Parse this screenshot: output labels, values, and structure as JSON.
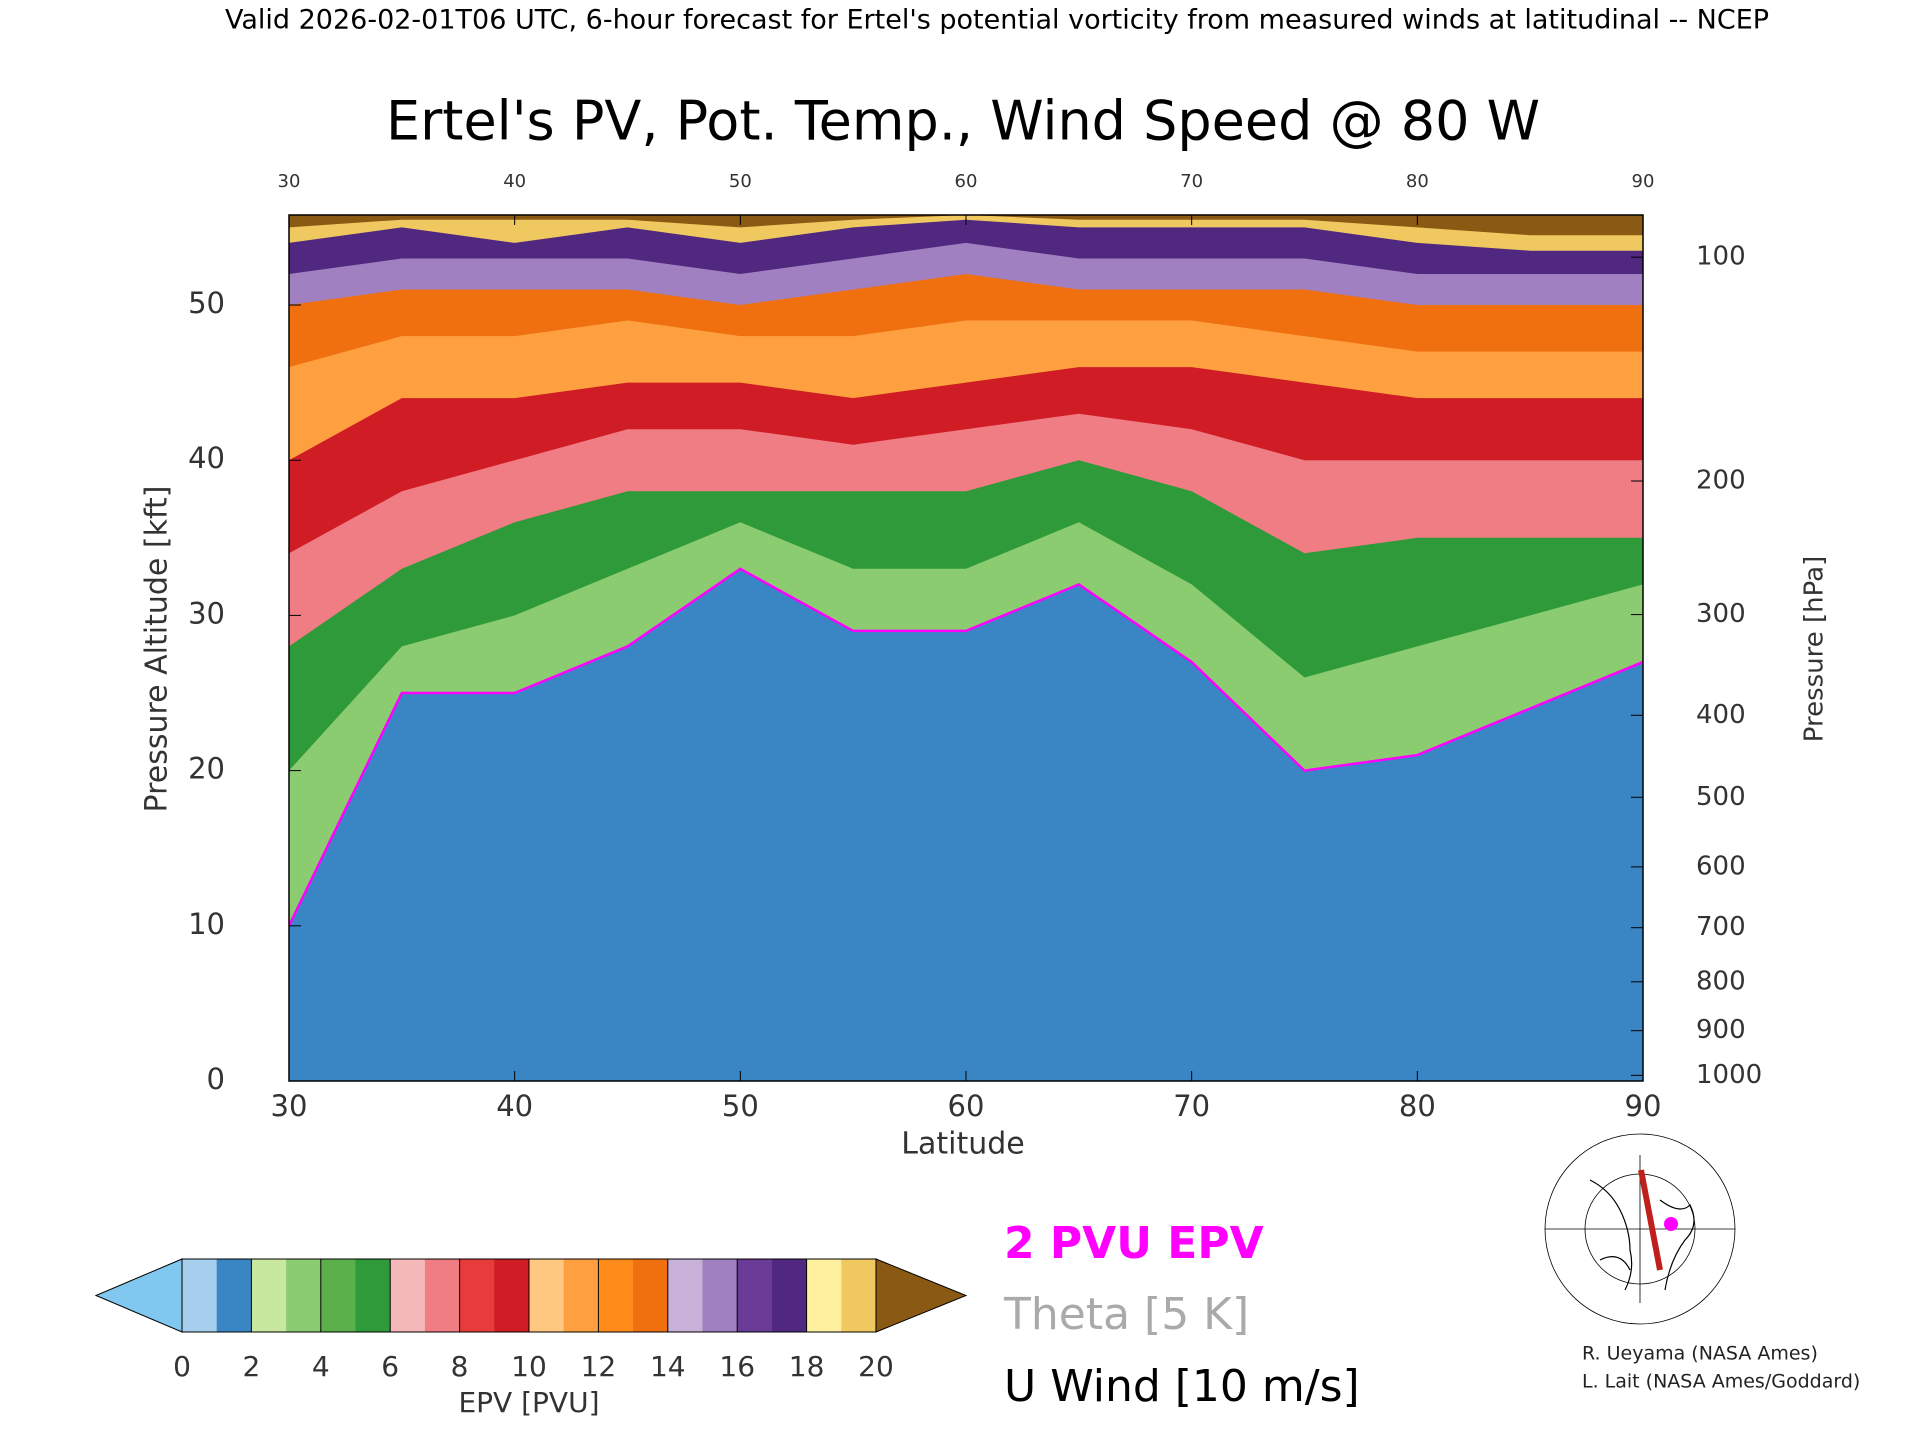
{
  "chart_data": {
    "type": "cross-section",
    "header": "Valid 2026-02-01T06 UTC, 6-hour forecast for Ertel's potential vorticity from measured winds at latitudinal -- NCEP",
    "title": "Ertel's PV, Pot. Temp., Wind Speed @ 80 W",
    "x_label": "Latitude",
    "y_label": "Pressure Altitude [kft]",
    "y2_label": "Pressure [hPa]",
    "xlim": [
      30,
      90
    ],
    "xticks": [
      30,
      40,
      50,
      60,
      70,
      80,
      90
    ],
    "ylim": [
      0,
      55.8
    ],
    "yticks": [
      0,
      10,
      20,
      30,
      40,
      50
    ],
    "y2scale": "pressure-altitude",
    "y2ticks": [
      100,
      200,
      300,
      400,
      500,
      600,
      700,
      800,
      900,
      1000
    ],
    "latitudes": [
      30,
      35,
      40,
      45,
      50,
      55,
      60,
      65,
      70,
      75,
      80,
      85,
      90
    ],
    "contours": [
      {
        "level": 2,
        "values": [
          10,
          25,
          25,
          28,
          33,
          29,
          29,
          32,
          27,
          20,
          21,
          24,
          27
        ]
      },
      {
        "level": 4,
        "values": [
          20,
          28,
          30,
          33,
          36,
          33,
          33,
          36,
          32,
          26,
          28,
          30,
          32
        ]
      },
      {
        "level": 6,
        "values": [
          28,
          33,
          36,
          38,
          38,
          38,
          38,
          40,
          38,
          34,
          35,
          35,
          35
        ]
      },
      {
        "level": 8,
        "values": [
          34,
          38,
          40,
          42,
          42,
          41,
          42,
          43,
          42,
          40,
          40,
          40,
          40
        ]
      },
      {
        "level": 10,
        "values": [
          40,
          44,
          44,
          45,
          45,
          44,
          45,
          46,
          46,
          45,
          44,
          44,
          44
        ]
      },
      {
        "level": 12,
        "values": [
          46,
          48,
          48,
          49,
          48,
          48,
          49,
          49,
          49,
          48,
          47,
          47,
          47
        ]
      },
      {
        "level": 14,
        "values": [
          50,
          51,
          51,
          51,
          50,
          51,
          52,
          51,
          51,
          51,
          50,
          50,
          50
        ]
      },
      {
        "level": 16,
        "values": [
          52,
          53,
          53,
          53,
          52,
          53,
          54,
          53,
          53,
          53,
          52,
          52,
          52
        ]
      },
      {
        "level": 18,
        "values": [
          54,
          55,
          54,
          55,
          54,
          55,
          55.5,
          55,
          55,
          55,
          54,
          53.5,
          53.5
        ]
      },
      {
        "level": 20,
        "values": [
          55,
          55.5,
          55.5,
          55.5,
          55,
          55.5,
          55.8,
          55.5,
          55.5,
          55.5,
          55,
          54.5,
          54.5
        ]
      }
    ],
    "colorbar": {
      "label": "EPV [PVU]",
      "lim": [
        0,
        20
      ],
      "ticks": [
        0,
        2,
        4,
        6,
        8,
        10,
        12,
        14,
        16,
        18,
        20
      ],
      "colors": [
        "#a6cfee",
        "#3a86c4",
        "#c8e8a0",
        "#8ccc70",
        "#5cb04c",
        "#2e9a3a",
        "#f4b8b8",
        "#f07c84",
        "#e83c3c",
        "#d01c24",
        "#ffc880",
        "#ffa040",
        "#ff8c1a",
        "#f07010",
        "#c8b0d8",
        "#a080c0",
        "#6a3c98",
        "#502880",
        "#fff0a0",
        "#f0c860"
      ],
      "under": "#80c8f0",
      "over": "#8a5a14"
    },
    "legend": [
      {
        "name": "2 PVU EPV",
        "color": "#ff00ff"
      },
      {
        "name": "Theta [5 K]",
        "color": "#aaaaaa"
      },
      {
        "name": "U Wind [10 m/s]",
        "color": "#000000"
      }
    ],
    "credits": [
      "R. Ueyama (NASA Ames)",
      "L. Lait (NASA Ames/Goddard)"
    ]
  }
}
